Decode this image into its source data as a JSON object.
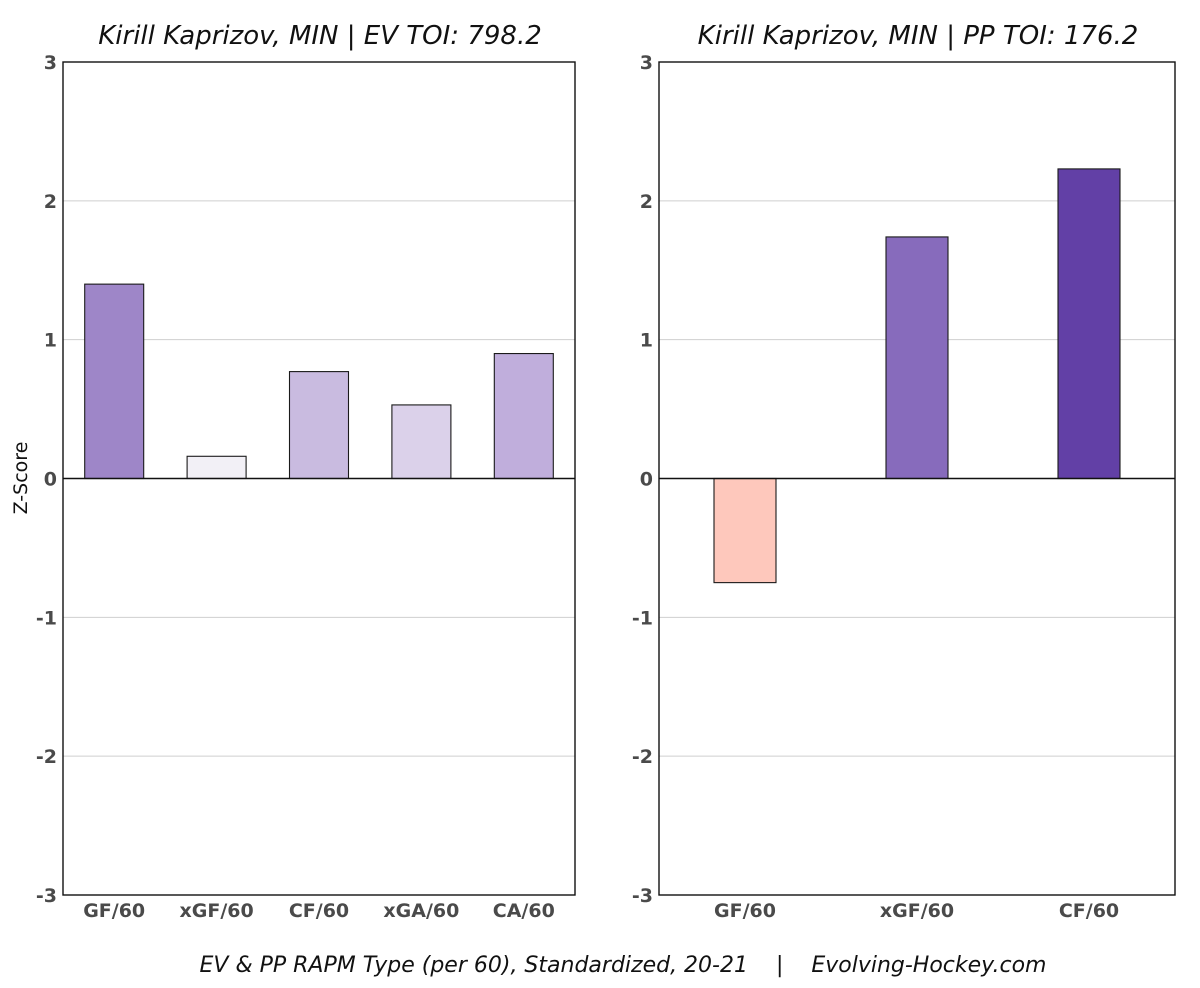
{
  "chart_data": [
    {
      "type": "bar",
      "title": "Kirill Kaprizov, MIN  |  EV TOI: 798.2",
      "ylabel": "Z-Score",
      "ylim": [
        -3,
        3
      ],
      "yticks": [
        -3,
        -2,
        -1,
        0,
        1,
        2,
        3
      ],
      "grid": true,
      "categories": [
        "GF/60",
        "xGF/60",
        "CF/60",
        "xGA/60",
        "CA/60"
      ],
      "values": [
        1.4,
        0.16,
        0.77,
        0.53,
        0.9
      ],
      "colors": [
        "#9e86c8",
        "#f2f0f6",
        "#c9bbe0",
        "#dbd1ea",
        "#c0aedc"
      ]
    },
    {
      "type": "bar",
      "title": "Kirill Kaprizov, MIN  |  PP TOI: 176.2",
      "ylabel": "",
      "ylim": [
        -3,
        3
      ],
      "yticks": [
        -3,
        -2,
        -1,
        0,
        1,
        2,
        3
      ],
      "grid": true,
      "categories": [
        "GF/60",
        "xGF/60",
        "CF/60"
      ],
      "values": [
        -0.75,
        1.74,
        2.23
      ],
      "colors": [
        "#fec8bc",
        "#876bbc",
        "#6240a6"
      ]
    }
  ],
  "footer": "EV & PP RAPM Type (per 60), Standardized, 20-21    |    Evolving-Hockey.com"
}
